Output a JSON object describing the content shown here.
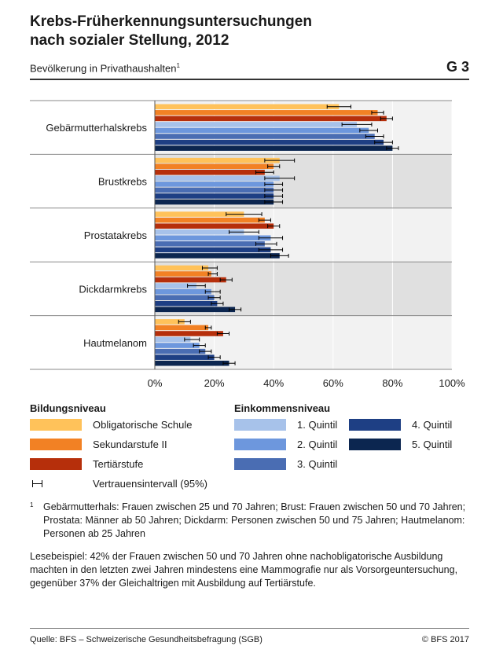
{
  "header": {
    "title_line1": "Krebs-Früherkennungsuntersuchungen",
    "title_line2": "nach sozialer Stellung, 2012",
    "subtitle": "Bevölkerung in Privathaushalten",
    "subtitle_note_marker": "1",
    "figure_number": "G 3"
  },
  "colors": {
    "obligatorische": "#ffc25a",
    "sekundar": "#f28124",
    "tertiar": "#b62f0b",
    "q1": "#a7c2ea",
    "q2": "#6d97dd",
    "q3": "#4a6db3",
    "q4": "#1e3f84",
    "q5": "#0c2650",
    "panel_a": "#f2f2f2",
    "panel_b": "#e0e0e0"
  },
  "chart_data": {
    "type": "bar",
    "orientation": "horizontal",
    "x_ticks": [
      "0%",
      "20%",
      "40%",
      "60%",
      "80%",
      "100%"
    ],
    "xlim": [
      0,
      100
    ],
    "categories": [
      "Gebärmutterhalskrebs",
      "Brustkrebs",
      "Prostatakrebs",
      "Dickdarmkrebs",
      "Hautmelanom"
    ],
    "series": [
      {
        "name": "Obligatorische Schule",
        "group": "Bildungsniveau",
        "color_key": "obligatorische",
        "values": [
          62,
          42,
          30,
          18,
          10
        ],
        "ci_low": [
          58,
          37,
          24,
          16,
          8
        ],
        "ci_high": [
          66,
          47,
          36,
          21,
          12
        ]
      },
      {
        "name": "Sekundarstufe II",
        "group": "Bildungsniveau",
        "color_key": "sekundar",
        "values": [
          75,
          40,
          37,
          19,
          18
        ],
        "ci_low": [
          73,
          38,
          35,
          18,
          17
        ],
        "ci_high": [
          77,
          42,
          39,
          21,
          19
        ]
      },
      {
        "name": "Tertiärstufe",
        "group": "Bildungsniveau",
        "color_key": "tertiar",
        "values": [
          78,
          37,
          40,
          24,
          23
        ],
        "ci_low": [
          76,
          34,
          38,
          22,
          21
        ],
        "ci_high": [
          80,
          40,
          42,
          26,
          25
        ]
      },
      {
        "name": "1. Quintil",
        "group": "Einkommensniveau",
        "color_key": "q1",
        "values": [
          68,
          42,
          30,
          14,
          12
        ],
        "ci_low": [
          63,
          37,
          25,
          11,
          10
        ],
        "ci_high": [
          73,
          47,
          35,
          17,
          15
        ]
      },
      {
        "name": "2. Quintil",
        "group": "Einkommensniveau",
        "color_key": "q2",
        "values": [
          72,
          40,
          39,
          19,
          15
        ],
        "ci_low": [
          69,
          37,
          35,
          17,
          13
        ],
        "ci_high": [
          75,
          43,
          43,
          22,
          17
        ]
      },
      {
        "name": "3. Quintil",
        "group": "Einkommensniveau",
        "color_key": "q3",
        "values": [
          74,
          40,
          37,
          20,
          17
        ],
        "ci_low": [
          71,
          37,
          34,
          18,
          15
        ],
        "ci_high": [
          77,
          43,
          41,
          22,
          19
        ]
      },
      {
        "name": "4. Quintil",
        "group": "Einkommensniveau",
        "color_key": "q4",
        "values": [
          77,
          40,
          39,
          21,
          20
        ],
        "ci_low": [
          74,
          37,
          35,
          19,
          18
        ],
        "ci_high": [
          80,
          43,
          43,
          23,
          22
        ]
      },
      {
        "name": "5. Quintil",
        "group": "Einkommensniveau",
        "color_key": "q5",
        "values": [
          80,
          40,
          42,
          27,
          25
        ],
        "ci_low": [
          78,
          37,
          39,
          25,
          23
        ],
        "ci_high": [
          82,
          43,
          45,
          29,
          27
        ]
      }
    ]
  },
  "legend": {
    "bildung_title": "Bildungsniveau",
    "einkommen_title": "Einkommensniveau",
    "obligatorische": "Obligatorische Schule",
    "sekundar": "Sekundarstufe II",
    "tertiar": "Tertiärstufe",
    "q1": "1. Quintil",
    "q2": "2. Quintil",
    "q3": "3. Quintil",
    "q4": "4. Quintil",
    "q5": "5. Quintil",
    "ci": "Vertrauensintervall (95%)"
  },
  "footnote": {
    "marker": "1",
    "text": "Gebärmutterhals: Frauen zwischen 25 und 70 Jahren; Brust: Frauen zwischen 50 und 70 Jahren; Prostata: Männer ab 50 Jahren; Dickdarm: Personen zwischen 50 und 75 Jahren; Hautmelanom: Personen ab 25 Jahren"
  },
  "reading_example": "Lesebeispiel: 42% der Frauen zwischen 50 und 70 Jahren ohne nachobligatorische Ausbildung machten in den letzten zwei Jahren mindestens eine Mammografie nur als Vorsorgeuntersuchung, gegenüber 37% der Gleichaltrigen mit Ausbildung auf Tertiärstufe.",
  "footer": {
    "source": "Quelle: BFS – Schweizerische Gesundheitsbefragung (SGB)",
    "copyright": "© BFS 2017"
  }
}
